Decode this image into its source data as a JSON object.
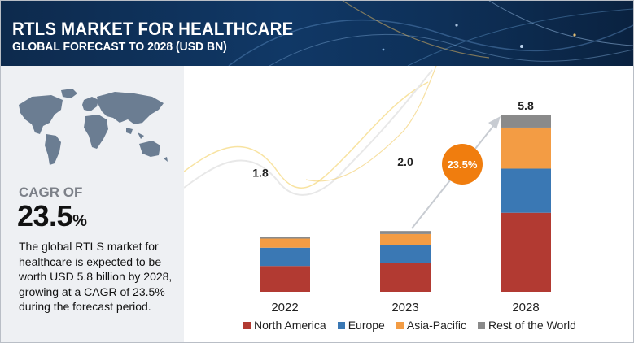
{
  "header": {
    "title": "RTLS MARKET FOR HEALTHCARE",
    "subtitle": "GLOBAL FORECAST TO 2028 (USD BN)"
  },
  "cagr": {
    "label": "CAGR OF",
    "value": "23.5",
    "unit": "%"
  },
  "description": "The global RTLS market for healthcare is expected to be worth USD 5.8 billion  by 2028, growing at a CAGR of 23.5% during the forecast period.",
  "colors": {
    "north_america": "#b23a32",
    "europe": "#3a78b4",
    "asia_pacific": "#f39c44",
    "rest_of_world": "#8a8a8a",
    "cagr_badge": "#f07d0e",
    "header_bg": "#0d2a4d",
    "panel_bg": "#eef0f3"
  },
  "chart_data": {
    "type": "bar",
    "stacked": true,
    "categories": [
      "2022",
      "2023",
      "2028"
    ],
    "totals": [
      "1.8",
      "2.0",
      "5.8"
    ],
    "series": [
      {
        "name": "North America",
        "values": [
          0.85,
          0.95,
          2.6
        ]
      },
      {
        "name": "Europe",
        "values": [
          0.6,
          0.6,
          1.45
        ]
      },
      {
        "name": "Asia-Pacific",
        "values": [
          0.3,
          0.35,
          1.35
        ]
      },
      {
        "name": "Rest of the World",
        "values": [
          0.05,
          0.1,
          0.4
        ]
      }
    ],
    "ylim": [
      0,
      5.8
    ],
    "grid": false,
    "legend_position": "bottom",
    "annotation": {
      "text": "23.5%",
      "from": "2023",
      "to": "2028"
    }
  }
}
